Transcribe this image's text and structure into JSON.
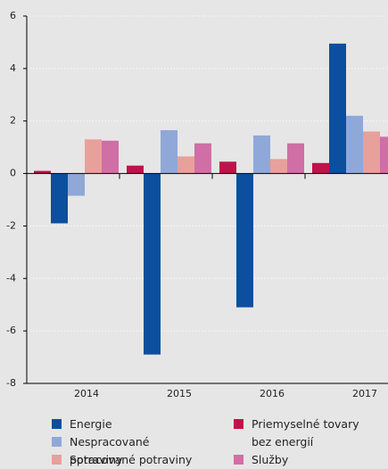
{
  "chart_data": {
    "type": "bar",
    "categories": [
      "2014",
      "2015",
      "2016",
      "2017"
    ],
    "series": [
      {
        "name": "Priemyselné tovary bez energií",
        "color": "#c0124a",
        "values": [
          0.1,
          0.3,
          0.45,
          0.4
        ]
      },
      {
        "name": "Energie",
        "color": "#0b4f9e",
        "values": [
          -1.9,
          -6.9,
          -5.1,
          4.95
        ]
      },
      {
        "name": "Nespracované potraviny",
        "color": "#8fa8d8",
        "values": [
          -0.85,
          1.65,
          1.45,
          2.2
        ]
      },
      {
        "name": "Spracované potraviny",
        "color": "#e8a09a",
        "values": [
          1.3,
          0.65,
          0.55,
          1.6
        ]
      },
      {
        "name": "Služby",
        "color": "#cf6fa5",
        "values": [
          1.25,
          1.15,
          1.15,
          1.4
        ]
      }
    ],
    "ylim": [
      -8,
      6
    ],
    "yticks": [
      -8,
      -6,
      -4,
      -2,
      0,
      2,
      4,
      6
    ],
    "grid": true
  }
}
